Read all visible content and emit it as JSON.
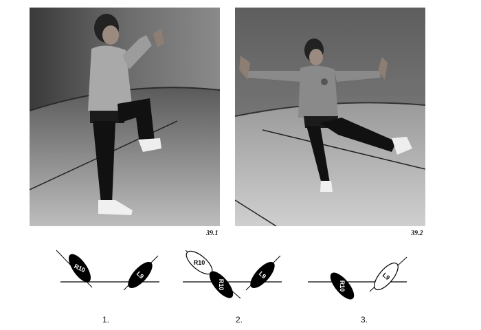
{
  "photos": [
    {
      "caption": "39.1"
    },
    {
      "caption": "39.2"
    }
  ],
  "diagrams": [
    {
      "step": "1.",
      "feet": [
        {
          "label": "R10",
          "fill": "black"
        },
        {
          "label": "L9",
          "fill": "black"
        }
      ]
    },
    {
      "step": "2.",
      "feet": [
        {
          "label": "R10",
          "fill": "white"
        },
        {
          "label": "R10",
          "fill": "black"
        },
        {
          "label": "L9",
          "fill": "black"
        }
      ]
    },
    {
      "step": "3.",
      "feet": [
        {
          "label": "R10",
          "fill": "black"
        },
        {
          "label": "L9",
          "fill": "white"
        }
      ]
    }
  ]
}
